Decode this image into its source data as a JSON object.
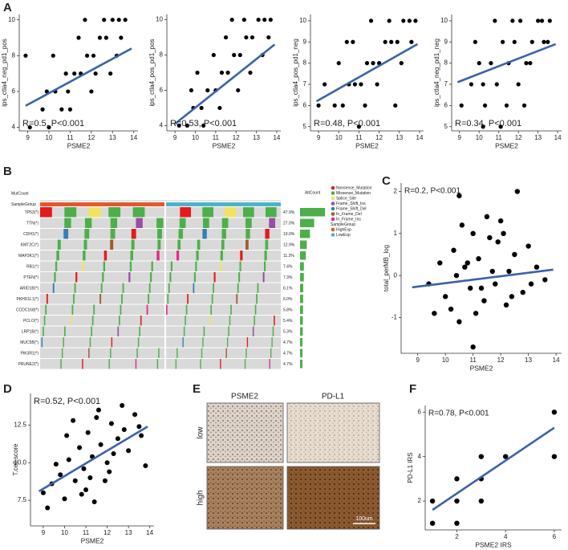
{
  "panel_labels": [
    "A",
    "B",
    "C",
    "D",
    "E",
    "F"
  ],
  "chart_data": [
    {
      "type": "scatter",
      "annotation": "R=0.5, P<0.001",
      "x_label": "PSME2",
      "y_label": "ips_ctla4_neg_pd1_pos",
      "color": "#000000",
      "trend_color": "#3b62a8",
      "xlim": [
        8.6,
        14.2
      ],
      "ylim": [
        3.8,
        10.3
      ],
      "xticks": [
        9,
        10,
        11,
        12,
        13,
        14
      ],
      "yticks": [
        4,
        6,
        8,
        10
      ],
      "x": [
        9.1,
        9.7,
        10.0,
        10.3,
        10.6,
        10.9,
        11.2,
        11.5,
        11.8,
        12.1,
        12.4,
        12.7,
        13.0,
        13.3,
        13.6,
        10.2,
        10.8,
        11.4,
        12.0,
        12.6,
        13.2,
        9.9,
        11.0,
        12.2,
        13.4,
        12.9,
        8.9,
        11.7
      ],
      "values": [
        4,
        5,
        4,
        6,
        5,
        6,
        7,
        7,
        8,
        8,
        9,
        9,
        10,
        10,
        10,
        8,
        7,
        9,
        6,
        10,
        8,
        6,
        5,
        7,
        9,
        7,
        8,
        10
      ],
      "trend_x": [
        8.9,
        13.9
      ],
      "trend_values": [
        5.2,
        8.4
      ]
    },
    {
      "type": "scatter",
      "annotation": "R=0.53, P<0.001",
      "x_label": "PSME2",
      "y_label": "ips_ctla4_pos_pd1_pos",
      "color": "#000000",
      "trend_color": "#3b62a8",
      "xlim": [
        8.6,
        14.2
      ],
      "ylim": [
        3.7,
        10.3
      ],
      "xticks": [
        9,
        10,
        11,
        12,
        13,
        14
      ],
      "yticks": [
        4,
        6,
        8,
        10
      ],
      "x": [
        9.2,
        9.6,
        9.9,
        10.3,
        10.6,
        11.0,
        11.3,
        11.6,
        11.9,
        12.2,
        12.5,
        12.8,
        13.1,
        13.4,
        13.7,
        10.1,
        10.9,
        11.5,
        12.1,
        12.7,
        13.3,
        9.8,
        11.2,
        12.4,
        13.6,
        10.4,
        11.8
      ],
      "values": [
        4,
        4,
        5,
        5,
        6,
        6,
        7,
        7,
        8,
        8,
        9,
        9,
        10,
        10,
        10,
        7,
        8,
        9,
        6,
        7,
        8,
        6,
        5,
        10,
        9,
        4,
        10
      ],
      "trend_x": [
        9.0,
        13.9
      ],
      "trend_values": [
        4.1,
        8.6
      ]
    },
    {
      "type": "scatter",
      "annotation": "R=0.48, P<0.001",
      "x_label": "PSME2",
      "y_label": "ips_ctla4_pos_pd1_neg",
      "color": "#000000",
      "trend_color": "#3b62a8",
      "xlim": [
        8.6,
        14.2
      ],
      "ylim": [
        4.8,
        10.3
      ],
      "xticks": [
        9,
        10,
        11,
        12,
        13,
        14
      ],
      "yticks": [
        5,
        6,
        7,
        8,
        9,
        10
      ],
      "x": [
        9.3,
        9.8,
        10.2,
        10.5,
        10.8,
        11.1,
        11.4,
        11.7,
        12.0,
        12.3,
        12.6,
        12.9,
        13.2,
        13.5,
        13.8,
        10.0,
        10.7,
        11.3,
        11.9,
        12.5,
        13.1,
        10.4,
        11.6,
        12.8,
        9.0,
        11.0,
        13.6
      ],
      "values": [
        7,
        6,
        6,
        7,
        7,
        7,
        8,
        8,
        8,
        9,
        9,
        9,
        10,
        10,
        10,
        8,
        9,
        6,
        7,
        10,
        8,
        9,
        10,
        6,
        6,
        5,
        9
      ],
      "trend_x": [
        8.9,
        13.9
      ],
      "trend_values": [
        6.2,
        8.9
      ]
    },
    {
      "type": "scatter",
      "annotation": "R=0.34, P<0.001",
      "x_label": "PSME2",
      "y_label": "ips_ctla4_neg_pd1_neg",
      "color": "#000000",
      "trend_color": "#3b62a8",
      "xlim": [
        8.6,
        14.2
      ],
      "ylim": [
        4.8,
        10.3
      ],
      "xticks": [
        9,
        10,
        11,
        12,
        13,
        14
      ],
      "yticks": [
        5,
        6,
        7,
        8,
        9,
        10
      ],
      "x": [
        9.1,
        9.6,
        10.0,
        10.3,
        10.6,
        10.9,
        11.2,
        11.5,
        11.8,
        12.1,
        12.4,
        12.7,
        13.0,
        13.3,
        13.6,
        10.2,
        10.8,
        11.4,
        12.0,
        12.6,
        13.2,
        9.8,
        11.1,
        12.3,
        13.5,
        10.2,
        11.7
      ],
      "values": [
        6,
        7,
        8,
        6,
        8,
        7,
        9,
        8,
        9,
        10,
        8,
        9,
        10,
        9,
        10,
        7,
        10,
        6,
        7,
        8,
        10,
        9,
        5,
        6,
        9,
        5,
        10
      ],
      "trend_x": [
        8.9,
        13.9
      ],
      "trend_values": [
        7.1,
        8.9
      ]
    },
    {
      "type": "oncoplot",
      "top_label": "MutCount",
      "side_label": "AltCount",
      "group_title": "SampleGroup",
      "genes": [
        "TP53(*)",
        "TTN(*)",
        "CDH1(*)",
        "KMT2C(*)",
        "MAP3K1(*)",
        "RB1(*)",
        "PTEN(*)",
        "ARID1B(*)",
        "PKHD1L1(*)",
        "CCDC168(*)",
        "PCLO(*)",
        "LRP1B(*)",
        "MUC5B(*)",
        "PIK3R1(*)",
        "PRUNE2(*)"
      ],
      "percents": [
        47.9,
        27.0,
        19.0,
        12.9,
        11.2,
        7.4,
        7.3,
        6.1,
        6.0,
        5.8,
        5.4,
        5.3,
        4.7,
        4.7,
        4.7
      ],
      "value_labels": [
        "47.9%",
        "27.0%",
        "19.0%",
        "12.9%",
        "11.2%",
        "7.4%",
        "7.3%",
        "6.1%",
        "6.0%",
        "5.8%",
        "5.4%",
        "5.3%",
        "4.7%",
        "4.7%",
        "4.7%"
      ],
      "mutation_types": [
        {
          "name": "Nonsense_Mutation",
          "color": "#e41a1c"
        },
        {
          "name": "Missense_Mutation",
          "color": "#4daf4a"
        },
        {
          "name": "Splice_Site",
          "color": "#f2e35c"
        },
        {
          "name": "Frame_Shift_Ins",
          "color": "#984ea3"
        },
        {
          "name": "Frame_Shift_Del",
          "color": "#377eb8"
        },
        {
          "name": "In_Frame_Del",
          "color": "#a65628"
        },
        {
          "name": "In_Frame_Ins",
          "color": "#e7298a"
        }
      ],
      "groups": [
        {
          "name": "HighExp",
          "color": "#e4572e"
        },
        {
          "name": "LowExp",
          "color": "#4fb3c8"
        }
      ]
    },
    {
      "type": "scatter",
      "annotation": "R=0.2, P<0.001",
      "x_label": "PSME2",
      "y_label": "total_perMB_log",
      "color": "#000000",
      "trend_color": "#3b62a8",
      "xlim": [
        8.4,
        14.2
      ],
      "ylim": [
        -1.85,
        2.2
      ],
      "xticks": [
        9,
        10,
        11,
        12,
        13,
        14
      ],
      "yticks": [
        -1,
        0,
        1,
        2
      ],
      "x": [
        9.4,
        9.8,
        10.0,
        10.3,
        10.5,
        10.7,
        10.9,
        11.0,
        11.2,
        11.4,
        11.6,
        11.8,
        12.0,
        12.3,
        12.5,
        12.8,
        13.0,
        13.3,
        13.6,
        10.2,
        10.6,
        11.1,
        11.5,
        11.9,
        12.2,
        12.6,
        10.4,
        11.3,
        12.4,
        10.8,
        11.7,
        12.1,
        13.1,
        9.6,
        11.0,
        10.5
      ],
      "values": [
        -0.2,
        0.3,
        -0.5,
        0.6,
        -1.1,
        0.2,
        -0.3,
        1.0,
        0.4,
        -0.6,
        0.9,
        -0.2,
        1.3,
        0.1,
        0.5,
        -0.4,
        0.7,
        0.2,
        -0.1,
        -0.8,
        1.2,
        -0.9,
        1.4,
        0.8,
        -0.7,
        2.0,
        0.0,
        -0.3,
        -0.5,
        0.3,
        0.1,
        1.0,
        -0.2,
        -0.9,
        -1.7,
        1.9
      ],
      "trend_x": [
        8.8,
        13.9
      ],
      "trend_values": [
        -0.28,
        0.14
      ]
    },
    {
      "type": "scatter",
      "annotation": "R=0.52, P<0.001",
      "x_label": "PSME2",
      "y_label": "T.cell.score",
      "color": "#000000",
      "trend_color": "#3b62a8",
      "xlim": [
        8.4,
        14.2
      ],
      "ylim": [
        5.8,
        14.6
      ],
      "xticks": [
        9,
        10,
        11,
        12,
        13,
        14
      ],
      "yticks": [
        7.5,
        {
          "value": 10,
          "label": "10.0"
        },
        12.5
      ],
      "x": [
        9.0,
        9.4,
        9.8,
        10.0,
        10.2,
        10.5,
        10.7,
        10.9,
        11.1,
        11.3,
        11.5,
        11.7,
        12.0,
        12.2,
        12.5,
        12.8,
        13.0,
        13.3,
        13.6,
        13.8,
        10.4,
        10.8,
        11.2,
        11.6,
        11.9,
        12.3,
        12.7,
        9.6,
        10.1,
        11.0,
        11.4,
        12.1,
        9.2,
        13.5
      ],
      "values": [
        8.0,
        8.6,
        9.2,
        7.6,
        10.2,
        8.8,
        11.0,
        9.6,
        12.0,
        10.4,
        13.0,
        11.2,
        10.0,
        12.6,
        11.6,
        12.2,
        10.8,
        13.2,
        11.8,
        9.8,
        12.8,
        7.9,
        9.0,
        13.5,
        8.8,
        10.6,
        13.8,
        9.9,
        11.8,
        8.2,
        7.4,
        9.4,
        7.0,
        12.4
      ],
      "trend_x": [
        8.8,
        13.9
      ],
      "trend_values": [
        8.1,
        12.4
      ]
    },
    {
      "type": "scatter",
      "annotation": "R=0.78, P<0.001",
      "x_label": "PSME2 IRS",
      "y_label": "PD-L1 IRS",
      "color": "#000000",
      "trend_color": "#3b62a8",
      "xlim": [
        0.7,
        6.3
      ],
      "ylim": [
        0.7,
        6.3
      ],
      "xticks": [
        2,
        4,
        6
      ],
      "yticks": [
        2,
        4,
        6
      ],
      "x": [
        1,
        1,
        2,
        2,
        2,
        3,
        3,
        3,
        4,
        6,
        6
      ],
      "values": [
        1,
        2,
        1,
        2,
        3,
        2,
        3,
        4,
        4,
        6,
        4
      ],
      "trend_x": [
        1,
        6
      ],
      "trend_values": [
        1.6,
        5.3
      ]
    }
  ],
  "ihc_panel": {
    "columns": [
      "PSME2",
      "PD-L1"
    ],
    "rows": [
      "low",
      "high"
    ],
    "scale_bar": "100um"
  }
}
